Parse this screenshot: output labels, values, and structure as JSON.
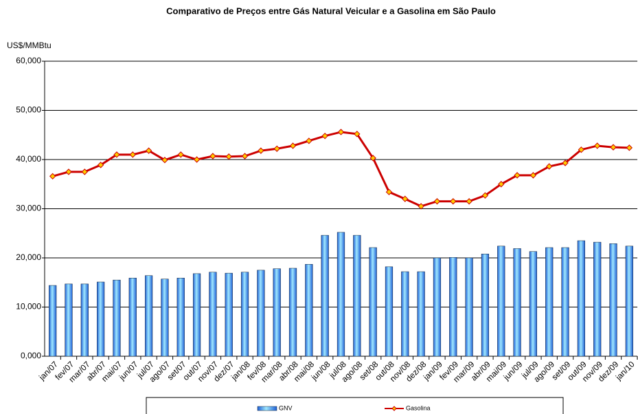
{
  "chart_data": {
    "type": "bar-line",
    "title": "Comparativo de Preços entre Gás Natural Veicular e a Gasolina em São Paulo",
    "y_label": "US$/MMBtu",
    "categories": [
      "jan/07",
      "fev/07",
      "mar/07",
      "abr/07",
      "mai/07",
      "jun/07",
      "jul/07",
      "ago/07",
      "set/07",
      "out/07",
      "nov/07",
      "dez/07",
      "jan/08",
      "fev/08",
      "mar/08",
      "abr/08",
      "mai/08",
      "jun/08",
      "jul/08",
      "ago/08",
      "set/08",
      "out/08",
      "nov/08",
      "dez/08",
      "jan/09",
      "fev/09",
      "mar/09",
      "abr/09",
      "mai/09",
      "jun/09",
      "jul/09",
      "ago/09",
      "set/09",
      "out/09",
      "nov/09",
      "dez/09",
      "jan/10"
    ],
    "series": [
      {
        "name": "GNV",
        "type": "bar",
        "color": "#1f5fd6",
        "values": [
          14.4,
          14.7,
          14.7,
          15.1,
          15.5,
          15.9,
          16.4,
          15.7,
          15.9,
          16.8,
          17.1,
          16.9,
          17.1,
          17.5,
          17.8,
          17.9,
          18.7,
          24.6,
          25.2,
          24.6,
          22.1,
          18.2,
          17.2,
          17.2,
          20.0,
          20.1,
          20.0,
          20.8,
          22.4,
          21.9,
          21.3,
          22.1,
          22.1,
          23.5,
          23.2,
          22.9,
          22.4
        ]
      },
      {
        "name": "Gasolina",
        "type": "line",
        "color": "#cc0000",
        "marker_color": "#ffcc00",
        "values": [
          36.6,
          37.5,
          37.5,
          38.9,
          41.0,
          41.0,
          41.8,
          39.9,
          41.0,
          40.0,
          40.7,
          40.6,
          40.7,
          41.8,
          42.2,
          42.8,
          43.8,
          44.8,
          45.6,
          45.2,
          40.3,
          33.4,
          32.0,
          30.5,
          31.5,
          31.5,
          31.5,
          32.7,
          35.0,
          36.8,
          36.8,
          38.6,
          39.3,
          42.0,
          42.8,
          42.5,
          42.4
        ]
      }
    ],
    "ylim": [
      0,
      60
    ],
    "yticks": [
      {
        "value": 0,
        "label": "0,000"
      },
      {
        "value": 10,
        "label": "10,000"
      },
      {
        "value": 20,
        "label": "20,000"
      },
      {
        "value": 30,
        "label": "30,000"
      },
      {
        "value": 40,
        "label": "40,000"
      },
      {
        "value": 50,
        "label": "50,000"
      },
      {
        "value": 60,
        "label": "60,000"
      }
    ],
    "grid": true,
    "legend": "bottom"
  }
}
